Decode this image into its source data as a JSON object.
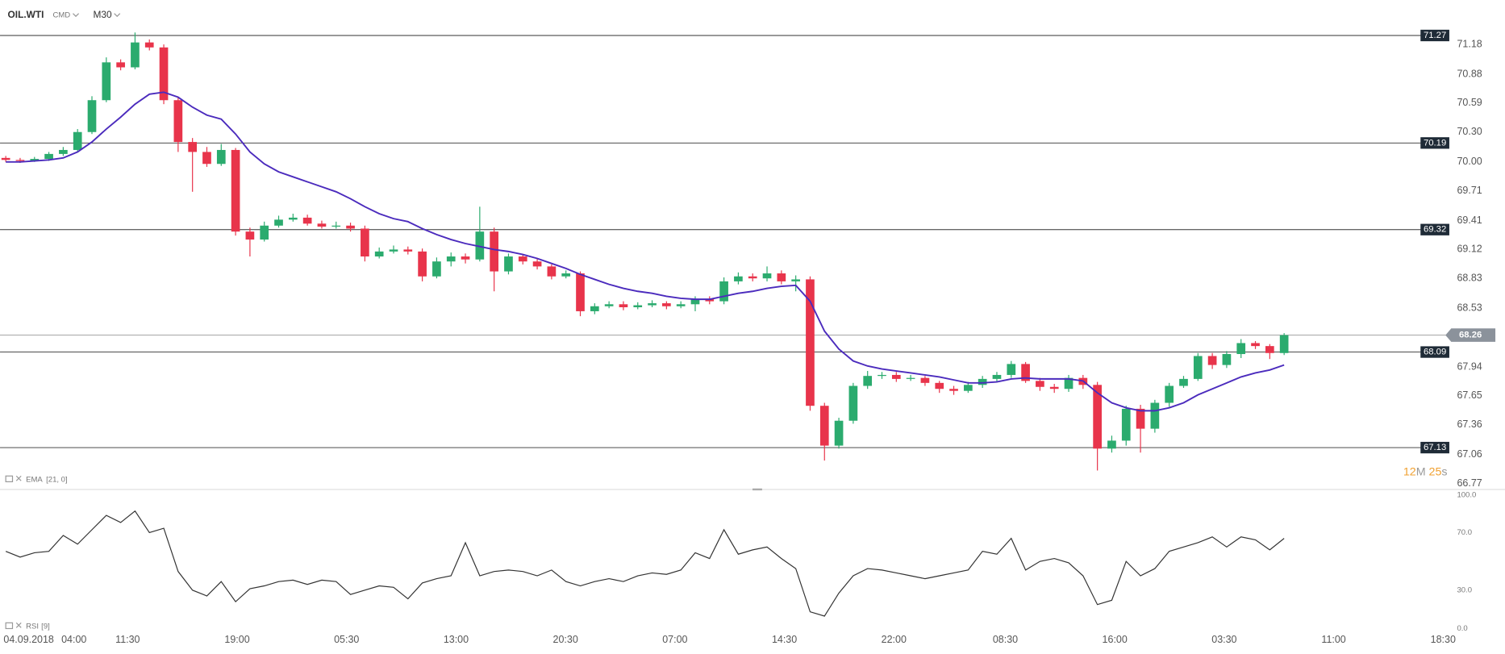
{
  "header": {
    "symbol": "OIL.WTI",
    "market": "CMD",
    "timeframe": "M30"
  },
  "chart_data": [
    {
      "type": "candlestick",
      "xlim": [
        -0.4,
        100.5
      ],
      "ylim": [
        66.71,
        71.53
      ],
      "yticks": [
        71.18,
        70.88,
        70.59,
        {
          "value": 70.3,
          "label": "70.30"
        },
        {
          "value": 70,
          "label": "70.00"
        },
        69.71,
        69.41,
        69.12,
        68.83,
        68.53,
        67.94,
        67.65,
        67.36,
        67.06,
        66.77
      ],
      "xticks": [
        {
          "value": 1.6,
          "label": "04.09.2018"
        },
        {
          "value": 4.75,
          "label": "04:00"
        },
        {
          "value": 8.49,
          "label": "11:30"
        },
        {
          "value": 16.11,
          "label": "19:00"
        },
        {
          "value": 23.73,
          "label": "05:30"
        },
        {
          "value": 31.35,
          "label": "13:00"
        },
        {
          "value": 38.97,
          "label": "20:30"
        },
        {
          "value": 46.59,
          "label": "07:00"
        },
        {
          "value": 54.21,
          "label": "14:30"
        },
        {
          "value": 61.83,
          "label": "22:00"
        },
        {
          "value": 69.59,
          "label": "08:30"
        },
        {
          "value": 77.21,
          "label": "16:00"
        },
        {
          "value": 84.83,
          "label": "03:30"
        },
        {
          "value": 92.45,
          "label": "11:00"
        },
        {
          "value": 100.07,
          "label": "18:30"
        }
      ],
      "up_color": "#2bab6e",
      "down_color": "#e8344b",
      "open": [
        70.04,
        70.02,
        70.01,
        70.03,
        70.08,
        70.12,
        70.3,
        70.62,
        71.0,
        70.95,
        71.2,
        71.15,
        70.62,
        70.2,
        70.1,
        69.98,
        70.12,
        69.3,
        69.22,
        69.36,
        69.42,
        69.44,
        69.38,
        69.35,
        69.36,
        69.33,
        69.05,
        69.1,
        69.12,
        69.1,
        68.85,
        69.0,
        69.05,
        69.02,
        69.3,
        68.9,
        69.05,
        69.0,
        68.95,
        68.85,
        68.88,
        68.5,
        68.55,
        68.57,
        68.54,
        68.56,
        68.58,
        68.55,
        68.57,
        68.62,
        68.6,
        68.8,
        68.85,
        68.83,
        68.88,
        68.8,
        68.82,
        67.55,
        67.15,
        67.4,
        67.75,
        67.85,
        67.86,
        67.82,
        67.83,
        67.78,
        67.72,
        67.7,
        67.76,
        67.82,
        67.86,
        67.97,
        67.8,
        67.74,
        67.72,
        67.83,
        67.76,
        67.12,
        67.2,
        67.52,
        67.32,
        67.58,
        67.75,
        67.82,
        68.05,
        67.96,
        68.07,
        68.18,
        68.15,
        68.08
      ],
      "high": [
        70.06,
        70.04,
        70.05,
        70.1,
        70.15,
        70.33,
        70.66,
        71.05,
        71.03,
        71.3,
        71.23,
        71.18,
        70.65,
        70.24,
        70.15,
        70.18,
        70.14,
        69.34,
        69.4,
        69.46,
        69.48,
        69.47,
        69.41,
        69.4,
        69.39,
        69.36,
        69.14,
        69.16,
        69.15,
        69.13,
        69.04,
        69.09,
        69.08,
        69.55,
        69.34,
        69.08,
        69.07,
        69.03,
        68.97,
        68.91,
        68.9,
        68.58,
        68.6,
        68.6,
        68.59,
        68.61,
        68.6,
        68.6,
        68.65,
        68.65,
        68.84,
        68.89,
        68.88,
        68.95,
        68.91,
        68.86,
        68.85,
        67.58,
        67.43,
        67.78,
        67.9,
        67.89,
        67.89,
        67.86,
        67.85,
        67.8,
        67.75,
        67.79,
        67.85,
        67.89,
        68.0,
        67.99,
        67.83,
        67.77,
        67.86,
        67.86,
        67.79,
        67.25,
        67.55,
        67.56,
        67.61,
        67.78,
        67.85,
        68.08,
        68.08,
        68.1,
        68.22,
        68.2,
        68.17,
        68.28
      ],
      "low": [
        70.0,
        69.99,
        70.0,
        70.01,
        70.06,
        70.1,
        70.28,
        70.6,
        70.92,
        70.93,
        71.12,
        70.58,
        70.1,
        69.7,
        69.95,
        69.96,
        69.26,
        69.05,
        69.2,
        69.34,
        69.4,
        69.36,
        69.33,
        69.33,
        69.3,
        69.0,
        69.03,
        69.08,
        69.07,
        68.8,
        68.83,
        68.95,
        68.98,
        69.0,
        68.7,
        68.87,
        68.97,
        68.92,
        68.82,
        68.83,
        68.45,
        68.47,
        68.53,
        68.51,
        68.52,
        68.54,
        68.52,
        68.53,
        68.5,
        68.57,
        68.57,
        68.77,
        68.8,
        68.8,
        68.77,
        68.7,
        67.5,
        67.0,
        67.12,
        67.37,
        67.72,
        67.82,
        67.79,
        67.8,
        67.75,
        67.68,
        67.66,
        67.68,
        67.73,
        67.79,
        67.83,
        67.78,
        67.7,
        67.68,
        67.69,
        67.72,
        66.9,
        67.08,
        67.15,
        67.08,
        67.28,
        67.54,
        67.73,
        67.8,
        67.92,
        67.93,
        68.03,
        68.12,
        68.02,
        68.06
      ],
      "close": [
        70.02,
        70.01,
        70.03,
        70.08,
        70.12,
        70.3,
        70.62,
        71.0,
        70.95,
        71.2,
        71.15,
        70.62,
        70.2,
        70.1,
        69.98,
        70.12,
        69.3,
        69.22,
        69.36,
        69.42,
        69.44,
        69.38,
        69.35,
        69.36,
        69.33,
        69.05,
        69.1,
        69.12,
        69.1,
        68.85,
        69.0,
        69.05,
        69.02,
        69.3,
        68.9,
        69.05,
        69.0,
        68.95,
        68.85,
        68.88,
        68.5,
        68.55,
        68.57,
        68.54,
        68.56,
        68.58,
        68.55,
        68.57,
        68.62,
        68.6,
        68.8,
        68.85,
        68.83,
        68.88,
        68.8,
        68.82,
        67.55,
        67.15,
        67.4,
        67.75,
        67.85,
        67.86,
        67.82,
        67.83,
        67.78,
        67.72,
        67.7,
        67.76,
        67.82,
        67.86,
        67.97,
        67.8,
        67.74,
        67.72,
        67.83,
        67.76,
        67.12,
        67.2,
        67.52,
        67.32,
        67.58,
        67.75,
        67.82,
        68.05,
        67.96,
        68.07,
        68.18,
        68.15,
        68.08,
        68.26
      ],
      "ema": {
        "name": "EMA",
        "params": "[21, 0]",
        "color": "#4b2bbd",
        "values": [
          70.0,
          70.0,
          70.01,
          70.02,
          70.04,
          70.1,
          70.2,
          70.33,
          70.45,
          70.58,
          70.68,
          70.7,
          70.65,
          70.55,
          70.47,
          70.43,
          70.28,
          70.1,
          69.98,
          69.9,
          69.85,
          69.8,
          69.75,
          69.7,
          69.63,
          69.55,
          69.48,
          69.43,
          69.4,
          69.33,
          69.27,
          69.22,
          69.18,
          69.15,
          69.12,
          69.1,
          69.07,
          69.03,
          68.98,
          68.93,
          68.87,
          68.82,
          68.77,
          68.73,
          68.7,
          68.68,
          68.65,
          68.63,
          68.62,
          68.62,
          68.65,
          68.68,
          68.7,
          68.73,
          68.75,
          68.76,
          68.6,
          68.3,
          68.12,
          68.0,
          67.95,
          67.92,
          67.9,
          67.88,
          67.86,
          67.84,
          67.81,
          67.78,
          67.78,
          67.79,
          67.82,
          67.83,
          67.82,
          67.82,
          67.82,
          67.8,
          67.68,
          67.58,
          67.53,
          67.5,
          67.5,
          67.53,
          67.58,
          67.66,
          67.72,
          67.78,
          67.84,
          67.88,
          67.91,
          67.96
        ]
      },
      "levels": [
        71.27,
        70.19,
        69.32,
        68.09,
        67.13
      ],
      "last_price": 68.26,
      "countdown": {
        "minutes": "12",
        "minutes_unit": "M",
        "seconds": "25",
        "seconds_unit": "s"
      }
    },
    {
      "type": "line",
      "name": "RSI",
      "params": "[9]",
      "color": "#333333",
      "xlim": [
        -0.4,
        100.5
      ],
      "ylim": [
        0,
        100
      ],
      "yticks": [
        {
          "value": 100,
          "label": "100.0"
        },
        {
          "value": 70,
          "label": "70.0"
        },
        {
          "value": 30,
          "label": "30.0"
        },
        {
          "value": 0,
          "label": "0.0"
        }
      ],
      "values": [
        57,
        53,
        56,
        57,
        68,
        62,
        72,
        82,
        77,
        85,
        70,
        73,
        43,
        30,
        26,
        36,
        22,
        31,
        33,
        36,
        37,
        34,
        37,
        36,
        27,
        30,
        33,
        32,
        24,
        35,
        38,
        40,
        63,
        40,
        43,
        44,
        43,
        40,
        44,
        36,
        33,
        36,
        38,
        36,
        40,
        42,
        41,
        44,
        56,
        52,
        72,
        55,
        58,
        60,
        52,
        45,
        15,
        12,
        28,
        40,
        45,
        44,
        42,
        40,
        38,
        40,
        42,
        44,
        57,
        55,
        66,
        44,
        50,
        52,
        49,
        40,
        20,
        23,
        50,
        40,
        45,
        57,
        60,
        63,
        67,
        60,
        67,
        65,
        58,
        66
      ]
    }
  ]
}
